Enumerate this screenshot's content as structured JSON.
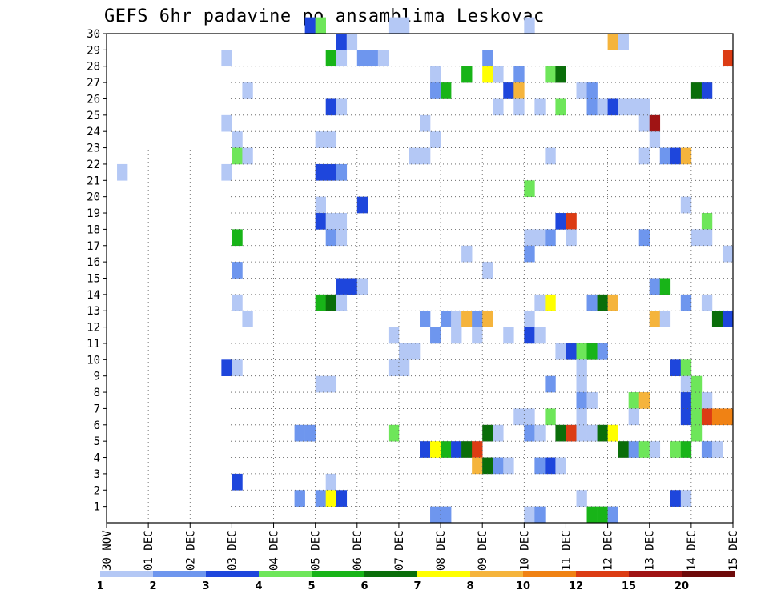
{
  "title": "GEFS 6hr padavine po ansamblima Leskovac",
  "chart_data": {
    "type": "heatmap",
    "title": "GEFS 6hr padavine po ansamblima Leskovac",
    "x_ticks": [
      "30 NOV",
      "01 DEC",
      "02 DEC",
      "03 DEC",
      "04 DEC",
      "05 DEC",
      "06 DEC",
      "07 DEC",
      "08 DEC",
      "09 DEC",
      "10 DEC",
      "11 DEC",
      "12 DEC",
      "13 DEC",
      "14 DEC",
      "15 DEC"
    ],
    "x_units": "days since 30 NOV 00Z (6-hour steps)",
    "y_ticks": [
      1,
      2,
      3,
      4,
      5,
      6,
      7,
      8,
      9,
      10,
      11,
      12,
      13,
      14,
      15,
      16,
      17,
      18,
      19,
      20,
      21,
      22,
      23,
      24,
      25,
      26,
      27,
      28,
      29,
      30
    ],
    "ylim": [
      0,
      30
    ],
    "grid": true,
    "colorbar": {
      "levels": [
        1,
        2,
        3,
        4,
        5,
        6,
        7,
        8,
        10,
        12,
        15,
        20
      ],
      "labels": [
        "1",
        "2",
        "3",
        "4",
        "5",
        "6",
        "7",
        "8",
        "10",
        "12",
        "15",
        "20"
      ],
      "colors": [
        "#b4c8f5",
        "#6e96ee",
        "#1e46dc",
        "#6ee65a",
        "#18b418",
        "#0a6e0a",
        "#ffff00",
        "#f5b43c",
        "#f08214",
        "#dc3c14",
        "#a01414",
        "#6e0a0a"
      ]
    },
    "cells": [
      [
        30,
        4.75,
        3
      ],
      [
        30,
        5.0,
        4
      ],
      [
        30,
        6.75,
        1
      ],
      [
        30,
        7.0,
        1
      ],
      [
        30,
        10.0,
        1
      ],
      [
        29,
        5.5,
        3
      ],
      [
        29,
        5.75,
        1
      ],
      [
        29,
        12.0,
        8
      ],
      [
        29,
        12.25,
        1
      ],
      [
        28,
        2.75,
        1
      ],
      [
        28,
        5.25,
        5
      ],
      [
        28,
        5.5,
        1
      ],
      [
        28,
        6.0,
        2
      ],
      [
        28,
        6.25,
        2
      ],
      [
        28,
        6.5,
        1
      ],
      [
        28,
        9.0,
        2
      ],
      [
        28,
        14.75,
        10
      ],
      [
        27,
        7.75,
        1
      ],
      [
        27,
        8.5,
        5
      ],
      [
        27,
        9.0,
        7
      ],
      [
        27,
        9.25,
        1
      ],
      [
        27,
        9.75,
        2
      ],
      [
        27,
        10.5,
        4
      ],
      [
        27,
        10.75,
        6
      ],
      [
        26,
        3.25,
        1
      ],
      [
        26,
        7.75,
        2
      ],
      [
        26,
        8.0,
        5
      ],
      [
        26,
        9.5,
        3
      ],
      [
        26,
        9.75,
        8
      ],
      [
        26,
        11.25,
        1
      ],
      [
        26,
        11.5,
        2
      ],
      [
        26,
        14.0,
        6
      ],
      [
        26,
        14.25,
        3
      ],
      [
        25,
        5.25,
        3
      ],
      [
        25,
        5.5,
        1
      ],
      [
        25,
        9.25,
        1
      ],
      [
        25,
        9.75,
        1
      ],
      [
        25,
        10.25,
        1
      ],
      [
        25,
        10.75,
        4
      ],
      [
        25,
        11.5,
        2
      ],
      [
        25,
        11.75,
        1
      ],
      [
        25,
        12.0,
        3
      ],
      [
        25,
        12.25,
        1
      ],
      [
        25,
        12.5,
        1
      ],
      [
        25,
        12.75,
        1
      ],
      [
        24,
        2.75,
        1
      ],
      [
        24,
        7.5,
        1
      ],
      [
        24,
        12.75,
        1
      ],
      [
        24,
        13.0,
        11
      ],
      [
        23,
        3.0,
        1
      ],
      [
        23,
        5.0,
        1
      ],
      [
        23,
        5.25,
        1
      ],
      [
        23,
        7.75,
        1
      ],
      [
        23,
        13.0,
        1
      ],
      [
        22,
        3.0,
        4
      ],
      [
        22,
        3.25,
        1
      ],
      [
        22,
        7.25,
        1
      ],
      [
        22,
        7.5,
        1
      ],
      [
        22,
        10.5,
        1
      ],
      [
        22,
        12.75,
        1
      ],
      [
        22,
        13.25,
        2
      ],
      [
        22,
        13.5,
        3
      ],
      [
        22,
        13.75,
        8
      ],
      [
        21,
        0.25,
        1
      ],
      [
        21,
        2.75,
        1
      ],
      [
        21,
        5.0,
        3
      ],
      [
        21,
        5.25,
        3
      ],
      [
        21,
        5.5,
        2
      ],
      [
        20,
        10.0,
        4
      ],
      [
        19,
        5.0,
        1
      ],
      [
        19,
        6.0,
        3
      ],
      [
        19,
        13.75,
        1
      ],
      [
        18,
        5.0,
        3
      ],
      [
        18,
        5.25,
        1
      ],
      [
        18,
        5.5,
        1
      ],
      [
        18,
        10.75,
        3
      ],
      [
        18,
        11.0,
        10
      ],
      [
        18,
        14.25,
        4
      ],
      [
        17,
        3.0,
        5
      ],
      [
        17,
        5.25,
        2
      ],
      [
        17,
        5.5,
        1
      ],
      [
        17,
        10.0,
        1
      ],
      [
        17,
        10.25,
        1
      ],
      [
        17,
        10.5,
        2
      ],
      [
        17,
        11.0,
        1
      ],
      [
        17,
        12.75,
        2
      ],
      [
        17,
        14.0,
        1
      ],
      [
        17,
        14.25,
        1
      ],
      [
        16,
        8.5,
        1
      ],
      [
        16,
        10.0,
        2
      ],
      [
        16,
        14.75,
        1
      ],
      [
        15,
        3.0,
        2
      ],
      [
        15,
        9.0,
        1
      ],
      [
        14,
        5.5,
        3
      ],
      [
        14,
        5.75,
        3
      ],
      [
        14,
        6.0,
        1
      ],
      [
        14,
        13.0,
        2
      ],
      [
        14,
        13.25,
        5
      ],
      [
        13,
        3.0,
        1
      ],
      [
        13,
        5.0,
        5
      ],
      [
        13,
        5.25,
        6
      ],
      [
        13,
        5.5,
        1
      ],
      [
        13,
        10.25,
        1
      ],
      [
        13,
        10.5,
        7
      ],
      [
        13,
        11.5,
        2
      ],
      [
        13,
        11.75,
        6
      ],
      [
        13,
        12.0,
        8
      ],
      [
        13,
        13.75,
        2
      ],
      [
        13,
        14.25,
        1
      ],
      [
        12,
        3.25,
        1
      ],
      [
        12,
        7.5,
        2
      ],
      [
        12,
        8.0,
        2
      ],
      [
        12,
        8.25,
        1
      ],
      [
        12,
        8.5,
        8
      ],
      [
        12,
        8.75,
        2
      ],
      [
        12,
        9.0,
        8
      ],
      [
        12,
        10.0,
        1
      ],
      [
        12,
        13.0,
        8
      ],
      [
        12,
        13.25,
        1
      ],
      [
        12,
        14.5,
        6
      ],
      [
        12,
        14.75,
        3
      ],
      [
        11,
        6.75,
        1
      ],
      [
        11,
        7.75,
        2
      ],
      [
        11,
        8.25,
        1
      ],
      [
        11,
        8.75,
        1
      ],
      [
        11,
        9.5,
        1
      ],
      [
        11,
        10.0,
        3
      ],
      [
        11,
        10.25,
        1
      ],
      [
        10,
        7.0,
        1
      ],
      [
        10,
        7.25,
        1
      ],
      [
        10,
        10.75,
        1
      ],
      [
        10,
        11.0,
        3
      ],
      [
        10,
        11.25,
        4
      ],
      [
        10,
        11.5,
        5
      ],
      [
        10,
        11.75,
        2
      ],
      [
        9,
        2.75,
        3
      ],
      [
        9,
        3.0,
        1
      ],
      [
        9,
        6.75,
        1
      ],
      [
        9,
        7.0,
        1
      ],
      [
        9,
        11.25,
        1
      ],
      [
        9,
        13.5,
        3
      ],
      [
        9,
        13.75,
        4
      ],
      [
        8,
        5.0,
        1
      ],
      [
        8,
        5.25,
        1
      ],
      [
        8,
        10.5,
        2
      ],
      [
        8,
        11.25,
        1
      ],
      [
        8,
        13.75,
        1
      ],
      [
        8,
        14.0,
        4
      ],
      [
        7,
        11.25,
        2
      ],
      [
        7,
        11.5,
        1
      ],
      [
        7,
        12.5,
        4
      ],
      [
        7,
        12.75,
        8
      ],
      [
        7,
        13.75,
        3
      ],
      [
        7,
        14.0,
        4
      ],
      [
        7,
        14.25,
        1
      ],
      [
        6,
        9.75,
        1
      ],
      [
        6,
        10.0,
        1
      ],
      [
        6,
        10.5,
        4
      ],
      [
        6,
        11.25,
        1
      ],
      [
        6,
        12.5,
        1
      ],
      [
        6,
        13.75,
        3
      ],
      [
        6,
        14.0,
        4
      ],
      [
        6,
        14.25,
        10
      ],
      [
        6,
        14.5,
        9
      ],
      [
        6,
        14.75,
        9
      ],
      [
        5,
        4.5,
        2
      ],
      [
        5,
        4.75,
        2
      ],
      [
        5,
        6.75,
        4
      ],
      [
        5,
        9.0,
        6
      ],
      [
        5,
        9.25,
        1
      ],
      [
        5,
        10.0,
        2
      ],
      [
        5,
        10.25,
        1
      ],
      [
        5,
        10.75,
        6
      ],
      [
        5,
        11.0,
        10
      ],
      [
        5,
        11.25,
        1
      ],
      [
        5,
        11.5,
        1
      ],
      [
        5,
        11.75,
        6
      ],
      [
        5,
        12.0,
        7
      ],
      [
        5,
        14.0,
        4
      ],
      [
        4,
        7.5,
        3
      ],
      [
        4,
        7.75,
        7
      ],
      [
        4,
        8.0,
        5
      ],
      [
        4,
        8.25,
        3
      ],
      [
        4,
        8.5,
        6
      ],
      [
        4,
        8.75,
        10
      ],
      [
        4,
        12.25,
        6
      ],
      [
        4,
        12.5,
        2
      ],
      [
        4,
        12.75,
        4
      ],
      [
        4,
        13.0,
        1
      ],
      [
        4,
        13.5,
        4
      ],
      [
        4,
        13.75,
        5
      ],
      [
        4,
        14.25,
        2
      ],
      [
        4,
        14.5,
        1
      ],
      [
        3,
        8.75,
        8
      ],
      [
        3,
        9.0,
        6
      ],
      [
        3,
        9.25,
        2
      ],
      [
        3,
        9.5,
        1
      ],
      [
        3,
        10.25,
        2
      ],
      [
        3,
        10.5,
        3
      ],
      [
        3,
        10.75,
        1
      ],
      [
        2,
        3.0,
        3
      ],
      [
        2,
        5.25,
        1
      ],
      [
        1,
        4.5,
        2
      ],
      [
        1,
        5.0,
        2
      ],
      [
        1,
        5.25,
        7
      ],
      [
        1,
        5.5,
        3
      ],
      [
        1,
        11.25,
        1
      ],
      [
        1,
        13.5,
        3
      ],
      [
        1,
        13.75,
        1
      ],
      [
        0,
        7.75,
        2
      ],
      [
        0,
        8.0,
        2
      ],
      [
        0,
        10.0,
        1
      ],
      [
        0,
        10.25,
        2
      ],
      [
        0,
        11.5,
        5
      ],
      [
        0,
        11.75,
        5
      ],
      [
        0,
        12.0,
        2
      ]
    ]
  }
}
